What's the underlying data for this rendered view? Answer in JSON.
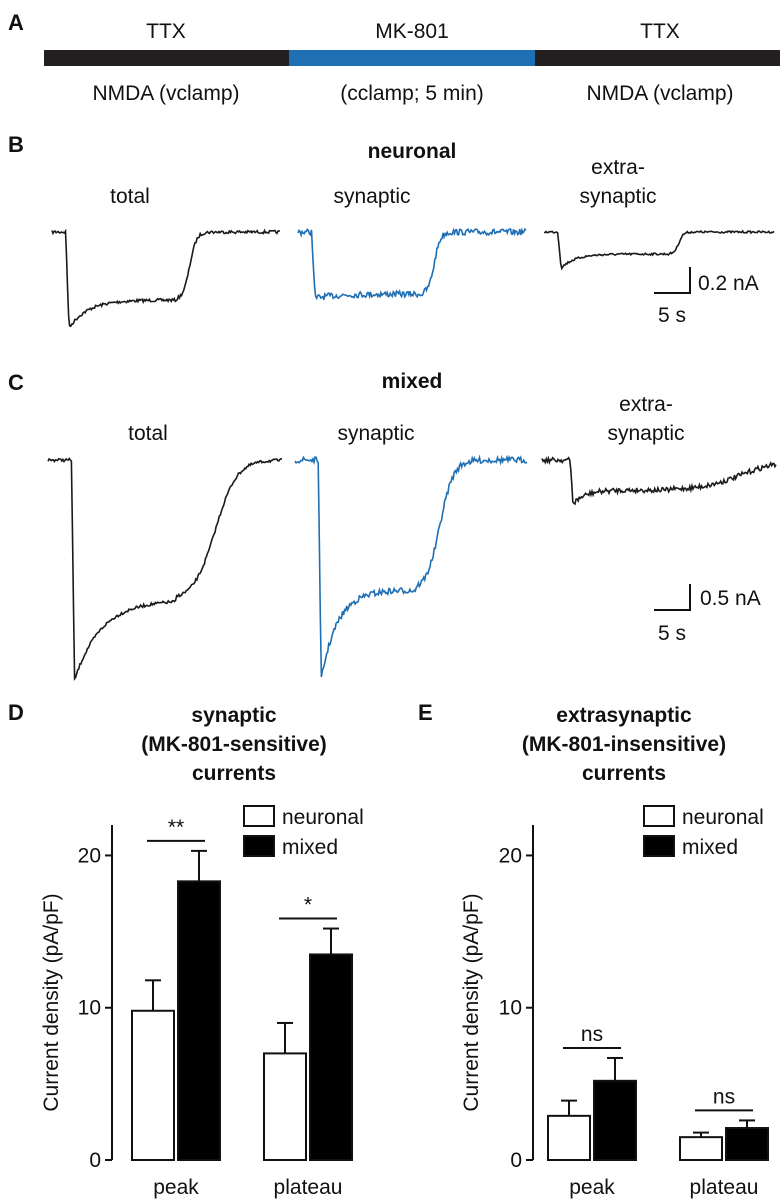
{
  "colors": {
    "black": "#1a1a1a",
    "blue": "#1f6fb4",
    "bar_black": "#000000",
    "bar_white": "#ffffff"
  },
  "panel_letters": {
    "A": "A",
    "B": "B",
    "C": "C",
    "D": "D",
    "E": "E"
  },
  "protocol": {
    "segments": [
      {
        "top": "TTX",
        "bottom": "NMDA (vclamp)",
        "color": "#231f20"
      },
      {
        "top": "MK-801",
        "bottom": "(cclamp; 5 min)",
        "color": "#1f6fb4"
      },
      {
        "top": "TTX",
        "bottom": "NMDA (vclamp)",
        "color": "#231f20"
      }
    ]
  },
  "traces_neuronal": {
    "title": "neuronal",
    "labels": {
      "total": "total",
      "synaptic": "synaptic",
      "extra_1": "extra-",
      "extra_2": "synaptic"
    },
    "scale_y": "0.2 nA",
    "scale_x": "5 s"
  },
  "traces_mixed": {
    "title": "mixed",
    "labels": {
      "total": "total",
      "synaptic": "synaptic",
      "extra_1": "extra-",
      "extra_2": "synaptic"
    },
    "scale_y": "0.5 nA",
    "scale_x": "5 s"
  },
  "chart_data": [
    {
      "type": "bar",
      "panel": "D",
      "title_lines": [
        "synaptic",
        "(MK-801-sensitive)",
        "currents"
      ],
      "ylabel": "Current density (pA/pF)",
      "ylim": [
        0,
        22
      ],
      "yticks": [
        0,
        10,
        20
      ],
      "categories": [
        "peak",
        "plateau"
      ],
      "series": [
        {
          "name": "neuronal",
          "values": [
            9.8,
            7.0
          ],
          "errors": [
            2.0,
            2.0
          ],
          "fill": "#ffffff"
        },
        {
          "name": "mixed",
          "values": [
            18.3,
            13.5
          ],
          "errors": [
            2.0,
            1.7
          ],
          "fill": "#000000"
        }
      ],
      "significance": [
        "**",
        "*"
      ],
      "legend_position": "top-right"
    },
    {
      "type": "bar",
      "panel": "E",
      "title_lines": [
        "extrasynaptic",
        "(MK-801-insensitive)",
        "currents"
      ],
      "ylabel": "Current density (pA/pF)",
      "ylim": [
        0,
        22
      ],
      "yticks": [
        0,
        10,
        20
      ],
      "categories": [
        "peak",
        "plateau"
      ],
      "series": [
        {
          "name": "neuronal",
          "values": [
            2.9,
            1.5
          ],
          "errors": [
            1.0,
            0.3
          ],
          "fill": "#ffffff"
        },
        {
          "name": "mixed",
          "values": [
            5.2,
            2.1
          ],
          "errors": [
            1.5,
            0.5
          ],
          "fill": "#000000"
        }
      ],
      "significance": [
        "ns",
        "ns"
      ],
      "legend_position": "top-right"
    }
  ]
}
